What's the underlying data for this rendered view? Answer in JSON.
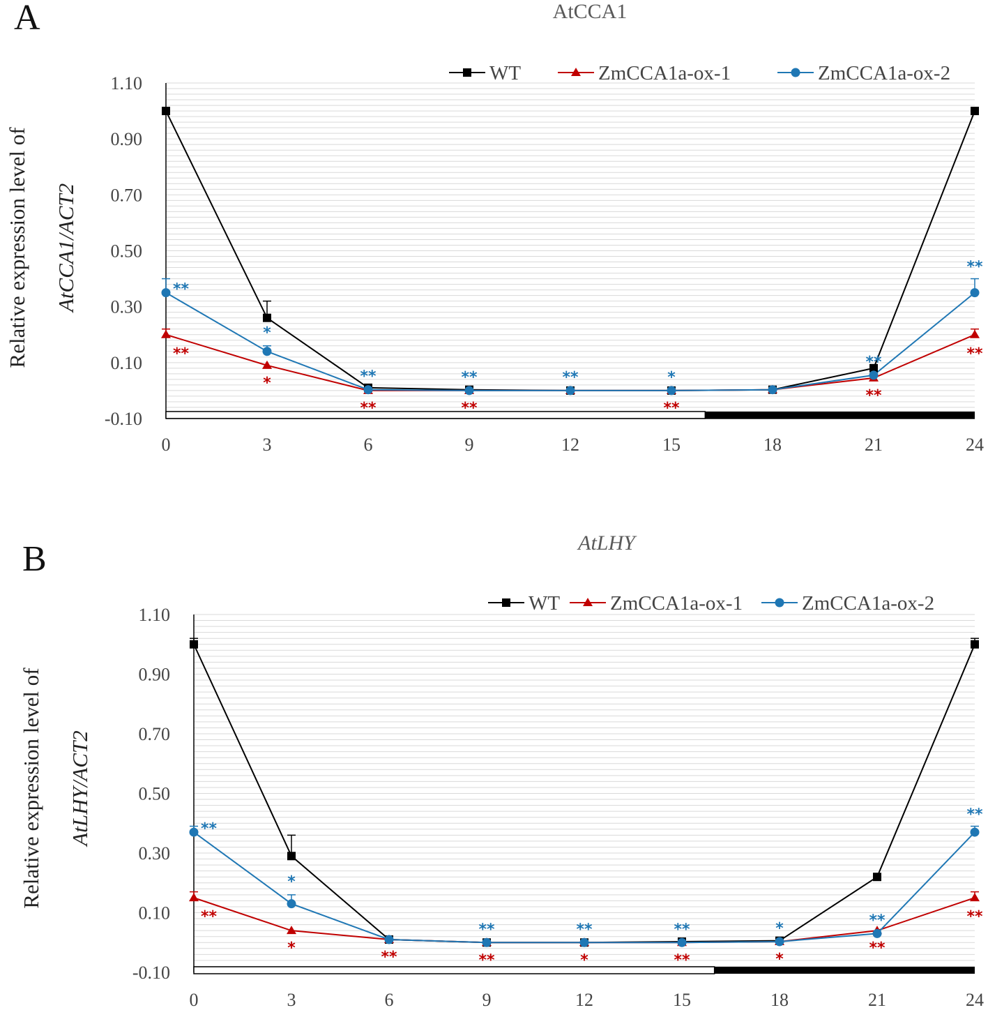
{
  "figure": {
    "colors": {
      "WT": "#000000",
      "ox1": "#c00000",
      "ox2": "#1f77b4"
    },
    "chart_data": [
      {
        "type": "line",
        "panel": "A",
        "title": "AtCCA1",
        "title_italic": false,
        "ylabel_line1": "Relative expression level of",
        "ylabel_line2": "AtCCA1/ACT2",
        "xlabel": "",
        "ylim": [
          -0.1,
          1.1
        ],
        "yticks": [
          -0.1,
          0.1,
          0.3,
          0.5,
          0.7,
          0.9,
          1.1
        ],
        "ytick_labels": [
          "-0.10",
          "0.10",
          "0.30",
          "0.50",
          "0.70",
          "0.90",
          "1.10"
        ],
        "x": [
          0,
          3,
          6,
          9,
          12,
          15,
          18,
          21,
          24
        ],
        "x_labels": [
          "0",
          "3",
          "6",
          "9",
          "12",
          "15",
          "18",
          "21",
          "24"
        ],
        "light_dark_bar": {
          "light": [
            0,
            16
          ],
          "dark": [
            16,
            24
          ]
        },
        "legend": [
          "WT",
          "ZmCCA1a-ox-1",
          "ZmCCA1a-ox-2"
        ],
        "series": [
          {
            "name": "WT",
            "color": "#000000",
            "marker": "square",
            "values": [
              1.0,
              0.26,
              0.01,
              0.003,
              0.0,
              0.0,
              0.003,
              0.08,
              1.0
            ],
            "errors": [
              0,
              0.06,
              0,
              0,
              0,
              0,
              0,
              0,
              0
            ]
          },
          {
            "name": "ZmCCA1a-ox-1",
            "color": "#c00000",
            "marker": "triangle",
            "values": [
              0.2,
              0.09,
              0.0,
              0.0,
              0.0,
              0.0,
              0.003,
              0.045,
              0.2
            ],
            "errors": [
              0.02,
              0,
              0,
              0,
              0,
              0,
              0,
              0,
              0.02
            ]
          },
          {
            "name": "ZmCCA1a-ox-2",
            "color": "#1f77b4",
            "marker": "circle",
            "values": [
              0.35,
              0.14,
              0.003,
              0.0,
              0.0,
              0.0,
              0.003,
              0.055,
              0.35
            ],
            "errors": [
              0.05,
              0.02,
              0,
              0,
              0,
              0,
              0,
              0,
              0.05
            ]
          }
        ],
        "significance": [
          {
            "x": 0,
            "series": "ZmCCA1a-ox-2",
            "text": "**",
            "pos": "right"
          },
          {
            "x": 0,
            "series": "ZmCCA1a-ox-1",
            "text": "**",
            "pos": "below-right"
          },
          {
            "x": 3,
            "series": "ZmCCA1a-ox-2",
            "text": "*",
            "pos": "above"
          },
          {
            "x": 3,
            "series": "ZmCCA1a-ox-1",
            "text": "*",
            "pos": "below"
          },
          {
            "x": 6,
            "series": "ZmCCA1a-ox-2",
            "text": "**",
            "pos": "above"
          },
          {
            "x": 6,
            "series": "ZmCCA1a-ox-1",
            "text": "**",
            "pos": "below"
          },
          {
            "x": 9,
            "series": "ZmCCA1a-ox-2",
            "text": "**",
            "pos": "above"
          },
          {
            "x": 9,
            "series": "ZmCCA1a-ox-1",
            "text": "**",
            "pos": "below"
          },
          {
            "x": 12,
            "series": "ZmCCA1a-ox-2",
            "text": "**",
            "pos": "above"
          },
          {
            "x": 15,
            "series": "ZmCCA1a-ox-2",
            "text": "*",
            "pos": "above"
          },
          {
            "x": 15,
            "series": "ZmCCA1a-ox-1",
            "text": "**",
            "pos": "below"
          },
          {
            "x": 21,
            "series": "ZmCCA1a-ox-2",
            "text": "**",
            "pos": "above"
          },
          {
            "x": 21,
            "series": "ZmCCA1a-ox-1",
            "text": "**",
            "pos": "below"
          },
          {
            "x": 24,
            "series": "ZmCCA1a-ox-2",
            "text": "**",
            "pos": "above"
          },
          {
            "x": 24,
            "series": "ZmCCA1a-ox-1",
            "text": "**",
            "pos": "below"
          }
        ]
      },
      {
        "type": "line",
        "panel": "B",
        "title": "AtLHY",
        "title_italic": true,
        "ylabel_line1": "Relative expression level of",
        "ylabel_line2": "AtLHY/ACT2",
        "xlabel": "",
        "ylim": [
          -0.1,
          1.1
        ],
        "yticks": [
          -0.1,
          0.1,
          0.3,
          0.5,
          0.7,
          0.9,
          1.1
        ],
        "ytick_labels": [
          "-0.10",
          "0.10",
          "0.30",
          "0.50",
          "0.70",
          "0.90",
          "1.10"
        ],
        "x": [
          0,
          3,
          6,
          9,
          12,
          15,
          18,
          21,
          24
        ],
        "x_labels": [
          "0",
          "3",
          "6",
          "9",
          "12",
          "15",
          "18",
          "21",
          "24"
        ],
        "light_dark_bar": {
          "light": [
            0,
            16
          ],
          "dark": [
            16,
            24
          ]
        },
        "legend": [
          "WT",
          "ZmCCA1a-ox-1",
          "ZmCCA1a-ox-2"
        ],
        "series": [
          {
            "name": "WT",
            "color": "#000000",
            "marker": "square",
            "values": [
              1.0,
              0.29,
              0.01,
              0.0,
              0.0,
              0.003,
              0.006,
              0.22,
              1.0
            ],
            "errors": [
              0.02,
              0.07,
              0,
              0,
              0,
              0,
              0,
              0,
              0.02
            ]
          },
          {
            "name": "ZmCCA1a-ox-1",
            "color": "#c00000",
            "marker": "triangle",
            "values": [
              0.15,
              0.04,
              0.01,
              0.0,
              0.0,
              0.0,
              0.003,
              0.04,
              0.15
            ],
            "errors": [
              0.02,
              0,
              0,
              0,
              0,
              0,
              0,
              0,
              0.02
            ]
          },
          {
            "name": "ZmCCA1a-ox-2",
            "color": "#1f77b4",
            "marker": "circle",
            "values": [
              0.37,
              0.13,
              0.01,
              0.0,
              0.0,
              0.0,
              0.003,
              0.03,
              0.37
            ],
            "errors": [
              0.02,
              0.03,
              0,
              0,
              0,
              0,
              0,
              0,
              0.02
            ]
          }
        ],
        "significance": [
          {
            "x": 0,
            "series": "ZmCCA1a-ox-2",
            "text": "**",
            "pos": "right"
          },
          {
            "x": 0,
            "series": "ZmCCA1a-ox-1",
            "text": "**",
            "pos": "below-right"
          },
          {
            "x": 3,
            "series": "ZmCCA1a-ox-2",
            "text": "*",
            "pos": "above"
          },
          {
            "x": 3,
            "series": "ZmCCA1a-ox-1",
            "text": "*",
            "pos": "below"
          },
          {
            "x": 6,
            "series": "ZmCCA1a-ox-1",
            "text": "**",
            "pos": "below"
          },
          {
            "x": 9,
            "series": "ZmCCA1a-ox-2",
            "text": "**",
            "pos": "above"
          },
          {
            "x": 9,
            "series": "ZmCCA1a-ox-1",
            "text": "**",
            "pos": "below"
          },
          {
            "x": 12,
            "series": "ZmCCA1a-ox-2",
            "text": "**",
            "pos": "above"
          },
          {
            "x": 12,
            "series": "ZmCCA1a-ox-1",
            "text": "*",
            "pos": "below"
          },
          {
            "x": 15,
            "series": "ZmCCA1a-ox-2",
            "text": "**",
            "pos": "above"
          },
          {
            "x": 15,
            "series": "ZmCCA1a-ox-1",
            "text": "**",
            "pos": "below"
          },
          {
            "x": 18,
            "series": "ZmCCA1a-ox-2",
            "text": "*",
            "pos": "above"
          },
          {
            "x": 18,
            "series": "ZmCCA1a-ox-1",
            "text": "*",
            "pos": "below"
          },
          {
            "x": 21,
            "series": "ZmCCA1a-ox-2",
            "text": "**",
            "pos": "above"
          },
          {
            "x": 21,
            "series": "ZmCCA1a-ox-1",
            "text": "**",
            "pos": "below"
          },
          {
            "x": 24,
            "series": "ZmCCA1a-ox-2",
            "text": "**",
            "pos": "above"
          },
          {
            "x": 24,
            "series": "ZmCCA1a-ox-1",
            "text": "**",
            "pos": "below"
          }
        ]
      }
    ]
  }
}
